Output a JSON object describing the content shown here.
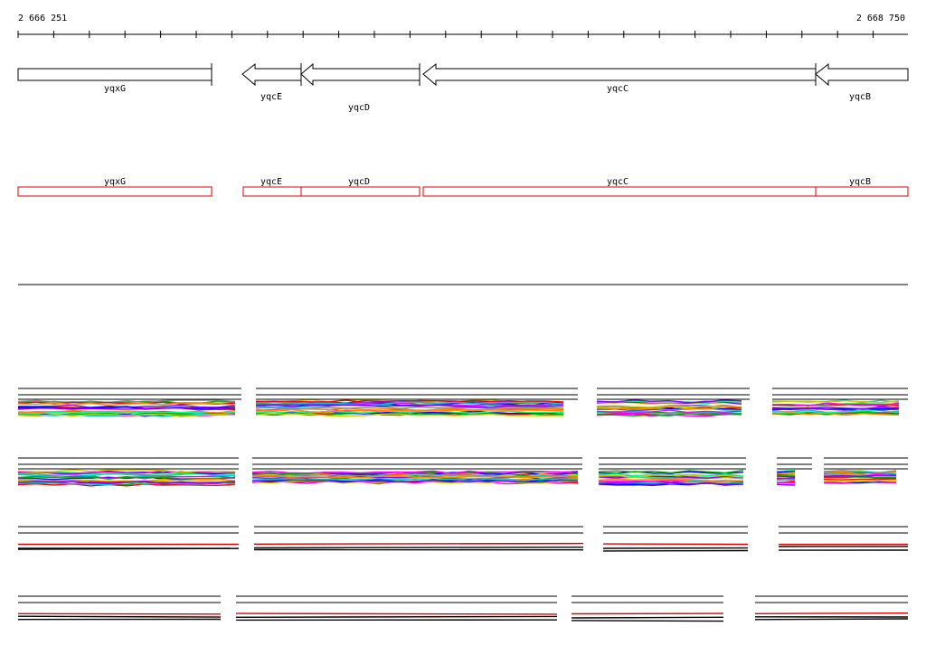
{
  "ruler": {
    "start_label": "2 666 251",
    "end_label": "2 668 750"
  },
  "colors": {
    "gene": "#000000",
    "segment": "#e00000",
    "track_palette": [
      "#ff0000",
      "#00aa00",
      "#0000ff",
      "#ff00ff",
      "#00cccc",
      "#cccc00",
      "#ff8800",
      "#8800ff",
      "#888888",
      "#00ff88"
    ]
  },
  "genes": [
    {
      "name": "yqxG",
      "strand": "+"
    },
    {
      "name": "yqcE",
      "strand": "-"
    },
    {
      "name": "yqcD",
      "strand": "-"
    },
    {
      "name": "yqcC",
      "strand": "-"
    },
    {
      "name": "yqcB",
      "strand": "-"
    }
  ],
  "segments": [
    {
      "name": "yqxG"
    },
    {
      "name": "yqcE"
    },
    {
      "name": "yqcD"
    },
    {
      "name": "yqcC"
    },
    {
      "name": "yqcB"
    }
  ],
  "track_rows": [
    {
      "style": "multicolor"
    },
    {
      "style": "multicolor"
    },
    {
      "style": "redblack"
    },
    {
      "style": "redblack"
    }
  ]
}
